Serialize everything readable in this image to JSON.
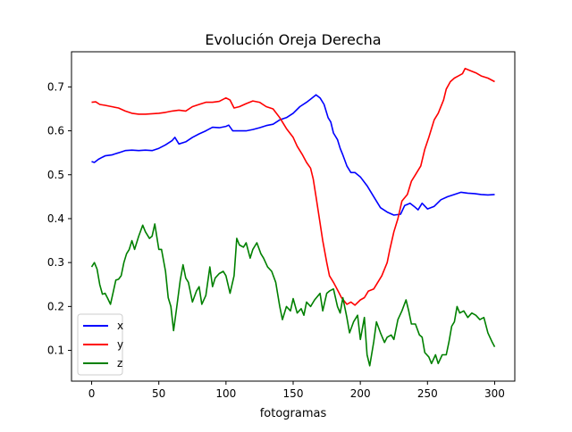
{
  "chart_data": {
    "type": "line",
    "title": "Evolución Oreja Derecha",
    "xlabel": "fotogramas",
    "ylabel": "",
    "xlim": [
      -15,
      315
    ],
    "ylim": [
      0.03,
      0.78
    ],
    "xticks": [
      0,
      50,
      100,
      150,
      200,
      250,
      300
    ],
    "yticks": [
      0.1,
      0.2,
      0.3,
      0.4,
      0.5,
      0.6,
      0.7
    ],
    "ytick_labels": [
      "0.1",
      "0.2",
      "0.3",
      "0.4",
      "0.5",
      "0.6",
      "0.7"
    ],
    "grid": false,
    "legend_position": "lower-left",
    "series": [
      {
        "name": "x",
        "color": "#0000ff",
        "points": [
          [
            0,
            0.53
          ],
          [
            2,
            0.528
          ],
          [
            5,
            0.535
          ],
          [
            8,
            0.54
          ],
          [
            10,
            0.543
          ],
          [
            15,
            0.545
          ],
          [
            18,
            0.548
          ],
          [
            20,
            0.55
          ],
          [
            25,
            0.555
          ],
          [
            30,
            0.556
          ],
          [
            35,
            0.555
          ],
          [
            40,
            0.556
          ],
          [
            45,
            0.555
          ],
          [
            50,
            0.56
          ],
          [
            55,
            0.568
          ],
          [
            60,
            0.578
          ],
          [
            62,
            0.585
          ],
          [
            65,
            0.57
          ],
          [
            70,
            0.575
          ],
          [
            75,
            0.585
          ],
          [
            80,
            0.593
          ],
          [
            85,
            0.6
          ],
          [
            90,
            0.608
          ],
          [
            95,
            0.607
          ],
          [
            100,
            0.61
          ],
          [
            102,
            0.613
          ],
          [
            105,
            0.6
          ],
          [
            110,
            0.6
          ],
          [
            115,
            0.6
          ],
          [
            120,
            0.603
          ],
          [
            125,
            0.607
          ],
          [
            130,
            0.612
          ],
          [
            135,
            0.615
          ],
          [
            140,
            0.625
          ],
          [
            145,
            0.63
          ],
          [
            150,
            0.64
          ],
          [
            155,
            0.655
          ],
          [
            160,
            0.665
          ],
          [
            163,
            0.672
          ],
          [
            167,
            0.682
          ],
          [
            170,
            0.675
          ],
          [
            173,
            0.66
          ],
          [
            176,
            0.63
          ],
          [
            178,
            0.62
          ],
          [
            180,
            0.595
          ],
          [
            183,
            0.58
          ],
          [
            185,
            0.56
          ],
          [
            187,
            0.545
          ],
          [
            190,
            0.52
          ],
          [
            193,
            0.505
          ],
          [
            196,
            0.505
          ],
          [
            200,
            0.495
          ],
          [
            205,
            0.475
          ],
          [
            210,
            0.45
          ],
          [
            215,
            0.425
          ],
          [
            220,
            0.415
          ],
          [
            225,
            0.408
          ],
          [
            230,
            0.41
          ],
          [
            233,
            0.43
          ],
          [
            237,
            0.435
          ],
          [
            240,
            0.428
          ],
          [
            243,
            0.42
          ],
          [
            246,
            0.435
          ],
          [
            250,
            0.422
          ],
          [
            255,
            0.428
          ],
          [
            260,
            0.443
          ],
          [
            265,
            0.45
          ],
          [
            270,
            0.455
          ],
          [
            275,
            0.46
          ],
          [
            280,
            0.458
          ],
          [
            285,
            0.457
          ],
          [
            290,
            0.455
          ],
          [
            295,
            0.454
          ],
          [
            300,
            0.455
          ]
        ]
      },
      {
        "name": "y",
        "color": "#ff0000",
        "points": [
          [
            0,
            0.665
          ],
          [
            3,
            0.666
          ],
          [
            6,
            0.66
          ],
          [
            10,
            0.658
          ],
          [
            15,
            0.655
          ],
          [
            20,
            0.652
          ],
          [
            25,
            0.645
          ],
          [
            30,
            0.64
          ],
          [
            35,
            0.638
          ],
          [
            40,
            0.638
          ],
          [
            45,
            0.639
          ],
          [
            50,
            0.64
          ],
          [
            55,
            0.642
          ],
          [
            60,
            0.645
          ],
          [
            65,
            0.647
          ],
          [
            70,
            0.645
          ],
          [
            75,
            0.655
          ],
          [
            80,
            0.66
          ],
          [
            85,
            0.665
          ],
          [
            90,
            0.665
          ],
          [
            95,
            0.667
          ],
          [
            100,
            0.675
          ],
          [
            103,
            0.67
          ],
          [
            106,
            0.652
          ],
          [
            110,
            0.655
          ],
          [
            115,
            0.662
          ],
          [
            120,
            0.668
          ],
          [
            125,
            0.665
          ],
          [
            130,
            0.655
          ],
          [
            135,
            0.65
          ],
          [
            140,
            0.63
          ],
          [
            145,
            0.605
          ],
          [
            150,
            0.585
          ],
          [
            153,
            0.565
          ],
          [
            157,
            0.545
          ],
          [
            160,
            0.528
          ],
          [
            163,
            0.515
          ],
          [
            165,
            0.49
          ],
          [
            167,
            0.45
          ],
          [
            170,
            0.39
          ],
          [
            172,
            0.35
          ],
          [
            175,
            0.3
          ],
          [
            177,
            0.27
          ],
          [
            180,
            0.255
          ],
          [
            183,
            0.238
          ],
          [
            186,
            0.22
          ],
          [
            190,
            0.205
          ],
          [
            193,
            0.21
          ],
          [
            196,
            0.203
          ],
          [
            200,
            0.215
          ],
          [
            203,
            0.22
          ],
          [
            206,
            0.235
          ],
          [
            210,
            0.24
          ],
          [
            213,
            0.255
          ],
          [
            216,
            0.27
          ],
          [
            220,
            0.3
          ],
          [
            222,
            0.33
          ],
          [
            225,
            0.37
          ],
          [
            228,
            0.4
          ],
          [
            231,
            0.44
          ],
          [
            235,
            0.455
          ],
          [
            238,
            0.485
          ],
          [
            241,
            0.5
          ],
          [
            245,
            0.52
          ],
          [
            248,
            0.558
          ],
          [
            251,
            0.585
          ],
          [
            255,
            0.625
          ],
          [
            258,
            0.64
          ],
          [
            262,
            0.67
          ],
          [
            264,
            0.695
          ],
          [
            267,
            0.712
          ],
          [
            270,
            0.72
          ],
          [
            273,
            0.725
          ],
          [
            276,
            0.73
          ],
          [
            278,
            0.742
          ],
          [
            282,
            0.737
          ],
          [
            286,
            0.732
          ],
          [
            290,
            0.725
          ],
          [
            295,
            0.72
          ],
          [
            300,
            0.712
          ]
        ]
      },
      {
        "name": "z",
        "color": "#008000",
        "points": [
          [
            0,
            0.29
          ],
          [
            2,
            0.3
          ],
          [
            4,
            0.285
          ],
          [
            6,
            0.25
          ],
          [
            8,
            0.228
          ],
          [
            10,
            0.23
          ],
          [
            12,
            0.218
          ],
          [
            14,
            0.205
          ],
          [
            16,
            0.232
          ],
          [
            18,
            0.26
          ],
          [
            20,
            0.262
          ],
          [
            22,
            0.27
          ],
          [
            24,
            0.3
          ],
          [
            26,
            0.32
          ],
          [
            28,
            0.33
          ],
          [
            30,
            0.35
          ],
          [
            32,
            0.33
          ],
          [
            35,
            0.36
          ],
          [
            38,
            0.385
          ],
          [
            40,
            0.37
          ],
          [
            43,
            0.355
          ],
          [
            45,
            0.36
          ],
          [
            47,
            0.388
          ],
          [
            50,
            0.33
          ],
          [
            52,
            0.33
          ],
          [
            55,
            0.28
          ],
          [
            57,
            0.22
          ],
          [
            59,
            0.2
          ],
          [
            61,
            0.145
          ],
          [
            63,
            0.19
          ],
          [
            66,
            0.26
          ],
          [
            68,
            0.295
          ],
          [
            70,
            0.265
          ],
          [
            72,
            0.255
          ],
          [
            75,
            0.21
          ],
          [
            78,
            0.235
          ],
          [
            80,
            0.245
          ],
          [
            82,
            0.205
          ],
          [
            85,
            0.225
          ],
          [
            88,
            0.29
          ],
          [
            90,
            0.245
          ],
          [
            92,
            0.265
          ],
          [
            95,
            0.275
          ],
          [
            98,
            0.28
          ],
          [
            100,
            0.27
          ],
          [
            103,
            0.23
          ],
          [
            106,
            0.27
          ],
          [
            108,
            0.355
          ],
          [
            110,
            0.34
          ],
          [
            113,
            0.335
          ],
          [
            115,
            0.345
          ],
          [
            118,
            0.31
          ],
          [
            120,
            0.33
          ],
          [
            123,
            0.345
          ],
          [
            126,
            0.32
          ],
          [
            128,
            0.31
          ],
          [
            131,
            0.29
          ],
          [
            134,
            0.28
          ],
          [
            137,
            0.255
          ],
          [
            140,
            0.2
          ],
          [
            142,
            0.17
          ],
          [
            145,
            0.2
          ],
          [
            148,
            0.19
          ],
          [
            150,
            0.218
          ],
          [
            153,
            0.185
          ],
          [
            156,
            0.195
          ],
          [
            158,
            0.18
          ],
          [
            160,
            0.21
          ],
          [
            163,
            0.2
          ],
          [
            166,
            0.215
          ],
          [
            170,
            0.23
          ],
          [
            172,
            0.19
          ],
          [
            175,
            0.23
          ],
          [
            177,
            0.235
          ],
          [
            180,
            0.24
          ],
          [
            183,
            0.2
          ],
          [
            185,
            0.185
          ],
          [
            187,
            0.22
          ],
          [
            190,
            0.175
          ],
          [
            192,
            0.14
          ],
          [
            195,
            0.165
          ],
          [
            198,
            0.18
          ],
          [
            200,
            0.125
          ],
          [
            203,
            0.175
          ],
          [
            205,
            0.09
          ],
          [
            207,
            0.065
          ],
          [
            210,
            0.12
          ],
          [
            212,
            0.165
          ],
          [
            215,
            0.14
          ],
          [
            218,
            0.118
          ],
          [
            220,
            0.13
          ],
          [
            223,
            0.135
          ],
          [
            225,
            0.125
          ],
          [
            228,
            0.17
          ],
          [
            231,
            0.19
          ],
          [
            234,
            0.215
          ],
          [
            236,
            0.19
          ],
          [
            238,
            0.16
          ],
          [
            241,
            0.16
          ],
          [
            244,
            0.135
          ],
          [
            246,
            0.13
          ],
          [
            248,
            0.095
          ],
          [
            251,
            0.085
          ],
          [
            253,
            0.07
          ],
          [
            256,
            0.09
          ],
          [
            258,
            0.07
          ],
          [
            261,
            0.09
          ],
          [
            264,
            0.09
          ],
          [
            266,
            0.12
          ],
          [
            268,
            0.155
          ],
          [
            270,
            0.165
          ],
          [
            272,
            0.2
          ],
          [
            274,
            0.185
          ],
          [
            277,
            0.19
          ],
          [
            280,
            0.175
          ],
          [
            283,
            0.185
          ],
          [
            286,
            0.18
          ],
          [
            289,
            0.17
          ],
          [
            292,
            0.175
          ],
          [
            295,
            0.14
          ],
          [
            298,
            0.12
          ],
          [
            300,
            0.108
          ]
        ]
      }
    ]
  }
}
